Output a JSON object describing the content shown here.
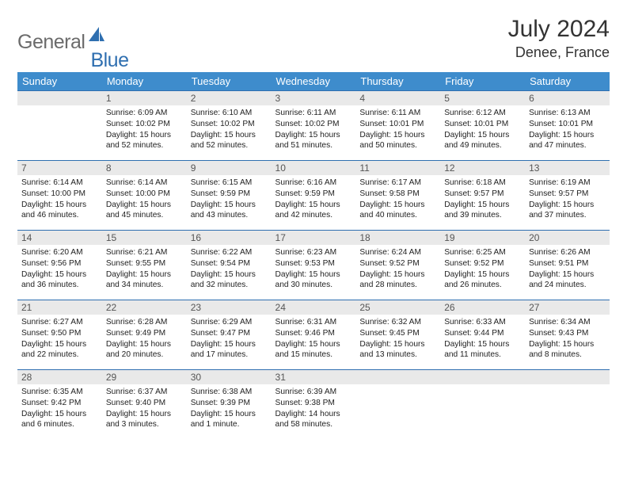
{
  "brand": {
    "part1": "General",
    "part2": "Blue"
  },
  "title": "July 2024",
  "location": "Denee, France",
  "colors": {
    "header_bg": "#3e8ccc",
    "row_border": "#2f6fb0",
    "daynum_bg": "#e9e9e9",
    "text": "#222222",
    "brand_gray": "#6b6b6b",
    "brand_blue": "#2f6fb0"
  },
  "weekdays": [
    "Sunday",
    "Monday",
    "Tuesday",
    "Wednesday",
    "Thursday",
    "Friday",
    "Saturday"
  ],
  "weeks": [
    [
      {
        "n": "",
        "sr": "",
        "ss": "",
        "dl": ""
      },
      {
        "n": "1",
        "sr": "Sunrise: 6:09 AM",
        "ss": "Sunset: 10:02 PM",
        "dl": "Daylight: 15 hours and 52 minutes."
      },
      {
        "n": "2",
        "sr": "Sunrise: 6:10 AM",
        "ss": "Sunset: 10:02 PM",
        "dl": "Daylight: 15 hours and 52 minutes."
      },
      {
        "n": "3",
        "sr": "Sunrise: 6:11 AM",
        "ss": "Sunset: 10:02 PM",
        "dl": "Daylight: 15 hours and 51 minutes."
      },
      {
        "n": "4",
        "sr": "Sunrise: 6:11 AM",
        "ss": "Sunset: 10:01 PM",
        "dl": "Daylight: 15 hours and 50 minutes."
      },
      {
        "n": "5",
        "sr": "Sunrise: 6:12 AM",
        "ss": "Sunset: 10:01 PM",
        "dl": "Daylight: 15 hours and 49 minutes."
      },
      {
        "n": "6",
        "sr": "Sunrise: 6:13 AM",
        "ss": "Sunset: 10:01 PM",
        "dl": "Daylight: 15 hours and 47 minutes."
      }
    ],
    [
      {
        "n": "7",
        "sr": "Sunrise: 6:14 AM",
        "ss": "Sunset: 10:00 PM",
        "dl": "Daylight: 15 hours and 46 minutes."
      },
      {
        "n": "8",
        "sr": "Sunrise: 6:14 AM",
        "ss": "Sunset: 10:00 PM",
        "dl": "Daylight: 15 hours and 45 minutes."
      },
      {
        "n": "9",
        "sr": "Sunrise: 6:15 AM",
        "ss": "Sunset: 9:59 PM",
        "dl": "Daylight: 15 hours and 43 minutes."
      },
      {
        "n": "10",
        "sr": "Sunrise: 6:16 AM",
        "ss": "Sunset: 9:59 PM",
        "dl": "Daylight: 15 hours and 42 minutes."
      },
      {
        "n": "11",
        "sr": "Sunrise: 6:17 AM",
        "ss": "Sunset: 9:58 PM",
        "dl": "Daylight: 15 hours and 40 minutes."
      },
      {
        "n": "12",
        "sr": "Sunrise: 6:18 AM",
        "ss": "Sunset: 9:57 PM",
        "dl": "Daylight: 15 hours and 39 minutes."
      },
      {
        "n": "13",
        "sr": "Sunrise: 6:19 AM",
        "ss": "Sunset: 9:57 PM",
        "dl": "Daylight: 15 hours and 37 minutes."
      }
    ],
    [
      {
        "n": "14",
        "sr": "Sunrise: 6:20 AM",
        "ss": "Sunset: 9:56 PM",
        "dl": "Daylight: 15 hours and 36 minutes."
      },
      {
        "n": "15",
        "sr": "Sunrise: 6:21 AM",
        "ss": "Sunset: 9:55 PM",
        "dl": "Daylight: 15 hours and 34 minutes."
      },
      {
        "n": "16",
        "sr": "Sunrise: 6:22 AM",
        "ss": "Sunset: 9:54 PM",
        "dl": "Daylight: 15 hours and 32 minutes."
      },
      {
        "n": "17",
        "sr": "Sunrise: 6:23 AM",
        "ss": "Sunset: 9:53 PM",
        "dl": "Daylight: 15 hours and 30 minutes."
      },
      {
        "n": "18",
        "sr": "Sunrise: 6:24 AM",
        "ss": "Sunset: 9:52 PM",
        "dl": "Daylight: 15 hours and 28 minutes."
      },
      {
        "n": "19",
        "sr": "Sunrise: 6:25 AM",
        "ss": "Sunset: 9:52 PM",
        "dl": "Daylight: 15 hours and 26 minutes."
      },
      {
        "n": "20",
        "sr": "Sunrise: 6:26 AM",
        "ss": "Sunset: 9:51 PM",
        "dl": "Daylight: 15 hours and 24 minutes."
      }
    ],
    [
      {
        "n": "21",
        "sr": "Sunrise: 6:27 AM",
        "ss": "Sunset: 9:50 PM",
        "dl": "Daylight: 15 hours and 22 minutes."
      },
      {
        "n": "22",
        "sr": "Sunrise: 6:28 AM",
        "ss": "Sunset: 9:49 PM",
        "dl": "Daylight: 15 hours and 20 minutes."
      },
      {
        "n": "23",
        "sr": "Sunrise: 6:29 AM",
        "ss": "Sunset: 9:47 PM",
        "dl": "Daylight: 15 hours and 17 minutes."
      },
      {
        "n": "24",
        "sr": "Sunrise: 6:31 AM",
        "ss": "Sunset: 9:46 PM",
        "dl": "Daylight: 15 hours and 15 minutes."
      },
      {
        "n": "25",
        "sr": "Sunrise: 6:32 AM",
        "ss": "Sunset: 9:45 PM",
        "dl": "Daylight: 15 hours and 13 minutes."
      },
      {
        "n": "26",
        "sr": "Sunrise: 6:33 AM",
        "ss": "Sunset: 9:44 PM",
        "dl": "Daylight: 15 hours and 11 minutes."
      },
      {
        "n": "27",
        "sr": "Sunrise: 6:34 AM",
        "ss": "Sunset: 9:43 PM",
        "dl": "Daylight: 15 hours and 8 minutes."
      }
    ],
    [
      {
        "n": "28",
        "sr": "Sunrise: 6:35 AM",
        "ss": "Sunset: 9:42 PM",
        "dl": "Daylight: 15 hours and 6 minutes."
      },
      {
        "n": "29",
        "sr": "Sunrise: 6:37 AM",
        "ss": "Sunset: 9:40 PM",
        "dl": "Daylight: 15 hours and 3 minutes."
      },
      {
        "n": "30",
        "sr": "Sunrise: 6:38 AM",
        "ss": "Sunset: 9:39 PM",
        "dl": "Daylight: 15 hours and 1 minute."
      },
      {
        "n": "31",
        "sr": "Sunrise: 6:39 AM",
        "ss": "Sunset: 9:38 PM",
        "dl": "Daylight: 14 hours and 58 minutes."
      },
      {
        "n": "",
        "sr": "",
        "ss": "",
        "dl": ""
      },
      {
        "n": "",
        "sr": "",
        "ss": "",
        "dl": ""
      },
      {
        "n": "",
        "sr": "",
        "ss": "",
        "dl": ""
      }
    ]
  ]
}
